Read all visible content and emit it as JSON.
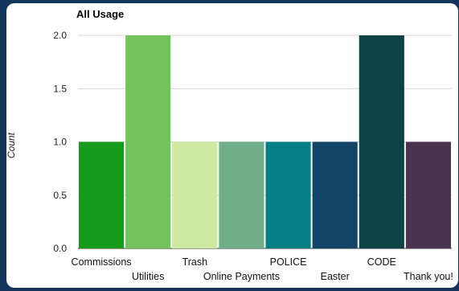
{
  "chart_data": {
    "type": "bar",
    "title": "All Usage",
    "xlabel": "",
    "ylabel": "Count",
    "ylim": [
      0,
      2.0
    ],
    "yticks": [
      "0.0",
      "0.5",
      "1.0",
      "1.5",
      "2.0"
    ],
    "grid": true,
    "categories": [
      "Commissions",
      "Utilities",
      "Trash",
      "Online Payments",
      "POLICE",
      "Easter",
      "CODE",
      "Thank you!"
    ],
    "values": [
      1,
      2,
      1,
      1,
      1,
      1,
      2,
      1
    ],
    "colors": [
      "#169b1d",
      "#73c35d",
      "#cdeaa0",
      "#6fae89",
      "#057f85",
      "#124466",
      "#0d4345",
      "#4a3450"
    ]
  }
}
